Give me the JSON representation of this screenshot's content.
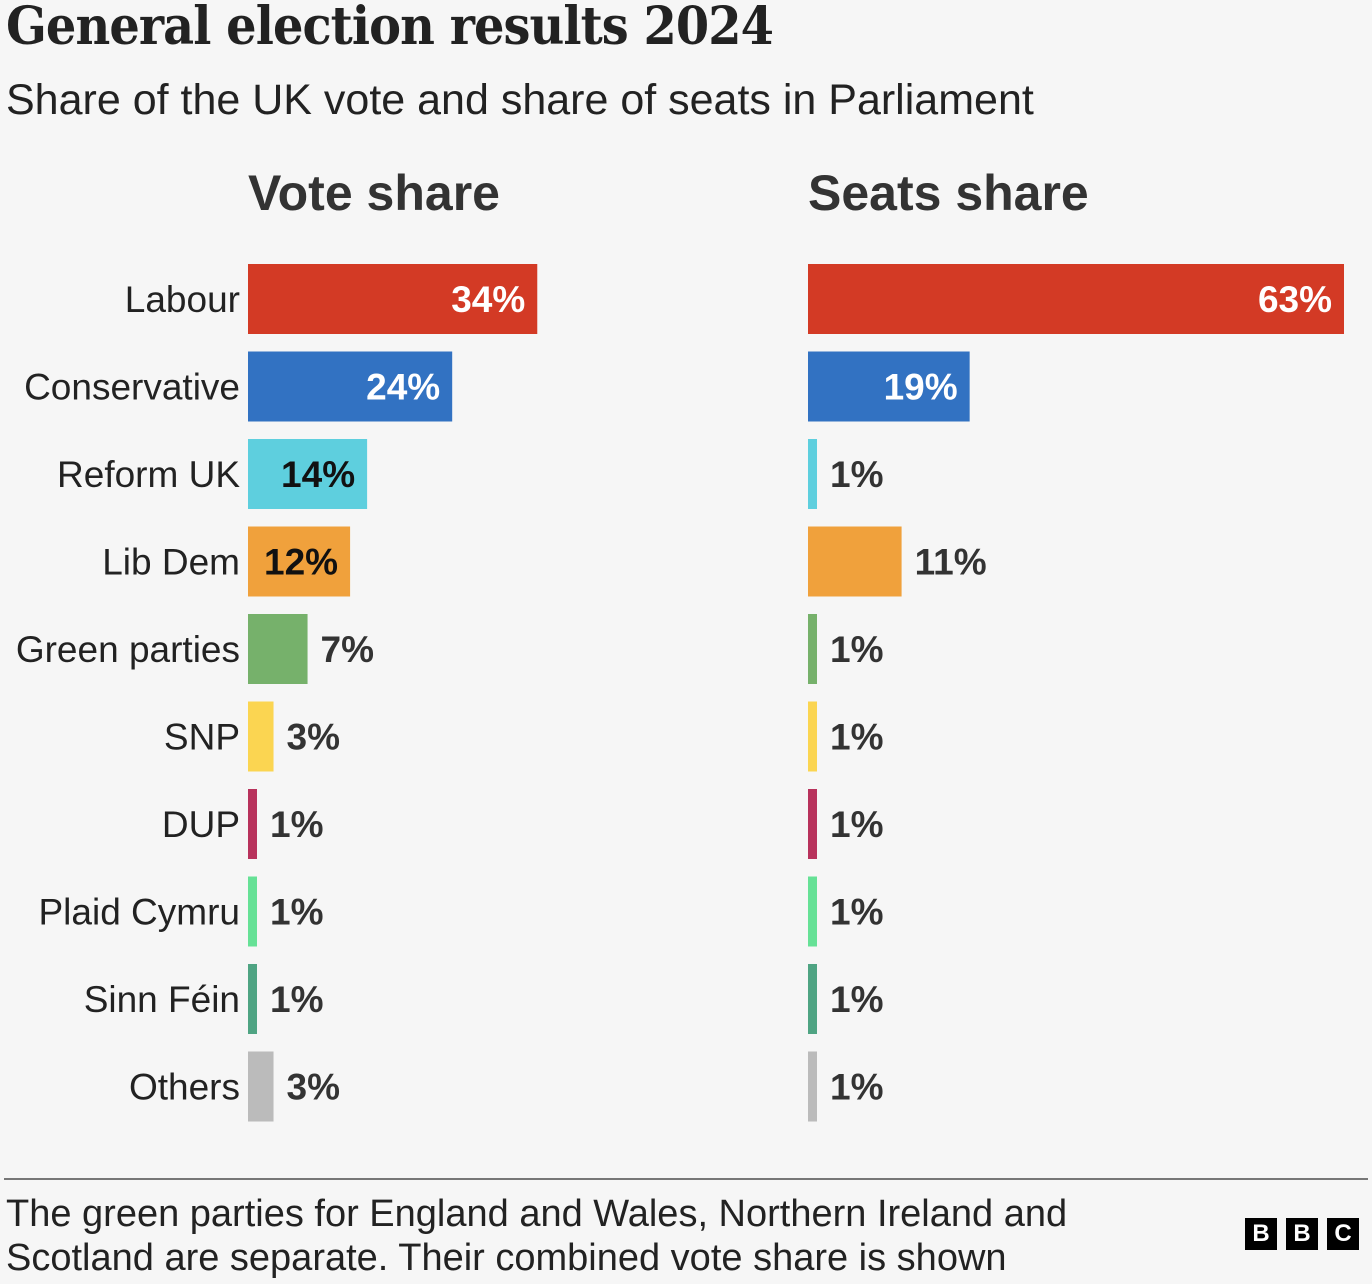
{
  "header": {
    "title": "General election results 2024",
    "subtitle": "Share of the UK vote and share of seats in Parliament"
  },
  "chart_data": {
    "type": "bar",
    "orientation": "horizontal",
    "title": "General election results 2024",
    "subtitle": "Share of the UK vote and share of seats in Parliament",
    "categories": [
      "Labour",
      "Conservative",
      "Reform UK",
      "Lib Dem",
      "Green parties",
      "SNP",
      "DUP",
      "Plaid Cymru",
      "Sinn Féin",
      "Others"
    ],
    "colors": [
      "#d33a25",
      "#3272c2",
      "#5ecfde",
      "#f0a13c",
      "#76b16b",
      "#fbd551",
      "#b8325c",
      "#66e196",
      "#4fa483",
      "#bbbbbb"
    ],
    "panels": [
      {
        "name": "Vote share",
        "values": [
          34,
          24,
          14,
          12,
          7,
          3,
          1,
          1,
          1,
          3
        ],
        "labels": [
          "34%",
          "24%",
          "14%",
          "12%",
          "7%",
          "3%",
          "1%",
          "1%",
          "1%",
          "3%"
        ],
        "label_inside": [
          true,
          true,
          true,
          true,
          false,
          false,
          false,
          false,
          false,
          false
        ],
        "label_color": [
          "#ffffff",
          "#ffffff",
          "#111111",
          "#111111",
          "#333333",
          "#333333",
          "#333333",
          "#333333",
          "#333333",
          "#333333"
        ]
      },
      {
        "name": "Seats share",
        "values": [
          63,
          19,
          1,
          11,
          1,
          1,
          1,
          1,
          1,
          1
        ],
        "labels": [
          "63%",
          "19%",
          "1%",
          "11%",
          "1%",
          "1%",
          "1%",
          "1%",
          "1%",
          "1%"
        ],
        "label_inside": [
          true,
          true,
          false,
          false,
          false,
          false,
          false,
          false,
          false,
          false
        ],
        "label_color": [
          "#ffffff",
          "#ffffff",
          "#333333",
          "#333333",
          "#333333",
          "#333333",
          "#333333",
          "#333333",
          "#333333",
          "#333333"
        ]
      }
    ],
    "xlim": [
      0,
      63
    ],
    "grid": false,
    "legend": "none"
  },
  "footer": {
    "note": "The green parties for England and Wales, Northern Ireland and Scotland are separate. Their combined vote share is shown",
    "logo_letters": [
      "B",
      "B",
      "C"
    ]
  }
}
